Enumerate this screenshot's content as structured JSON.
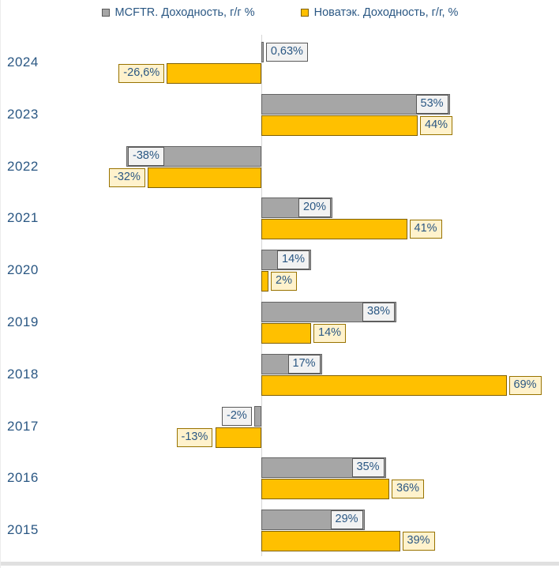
{
  "legend": {
    "items": [
      {
        "label": "MCFTR. Доходность, г/г %",
        "swatch_color": "#a6a6a6",
        "swatch_border": "#595959"
      },
      {
        "label": "Новатэк. Доходность, г/г, %",
        "swatch_color": "#ffc000",
        "swatch_border": "#7f6000"
      }
    ]
  },
  "chart_data": {
    "type": "bar",
    "orientation": "horizontal",
    "title": "",
    "xlabel": "",
    "ylabel": "",
    "legend_position": "top",
    "value_axis_hidden": true,
    "zero_line": true,
    "grid": false,
    "xlim": [
      -40,
      84
    ],
    "categories": [
      "2024",
      "2023",
      "2022",
      "2021",
      "2020",
      "2019",
      "2018",
      "2017",
      "2016",
      "2015"
    ],
    "series": [
      {
        "name": "MCFTR. Доходность, г/г %",
        "key": "mcftr",
        "color": "#a6a6a6",
        "border_color": "#646464",
        "label_bg": "#f2f2f2",
        "label_border": "#595959",
        "label_placement": "inside-end",
        "values": [
          0.63,
          53,
          -38,
          20,
          14,
          38,
          17,
          -2,
          35,
          29
        ],
        "labels": [
          "0,63%",
          "53%",
          "-38%",
          "20%",
          "14%",
          "38%",
          "17%",
          "-2%",
          "35%",
          "29%"
        ]
      },
      {
        "name": "Новатэк. Доходность, г/г, %",
        "key": "novatek",
        "color": "#ffc000",
        "border_color": "#7f6000",
        "label_bg": "#fff2cc",
        "label_border": "#997300",
        "label_placement": "outside-end",
        "values": [
          -26.6,
          44,
          -32,
          41,
          2,
          14,
          69,
          -13,
          36,
          39
        ],
        "labels": [
          "-26,6%",
          "44%",
          "-32%",
          "41%",
          "2%",
          "14%",
          "69%",
          "-13%",
          "36%",
          "39%"
        ]
      }
    ],
    "text_color": "#2a5783"
  }
}
